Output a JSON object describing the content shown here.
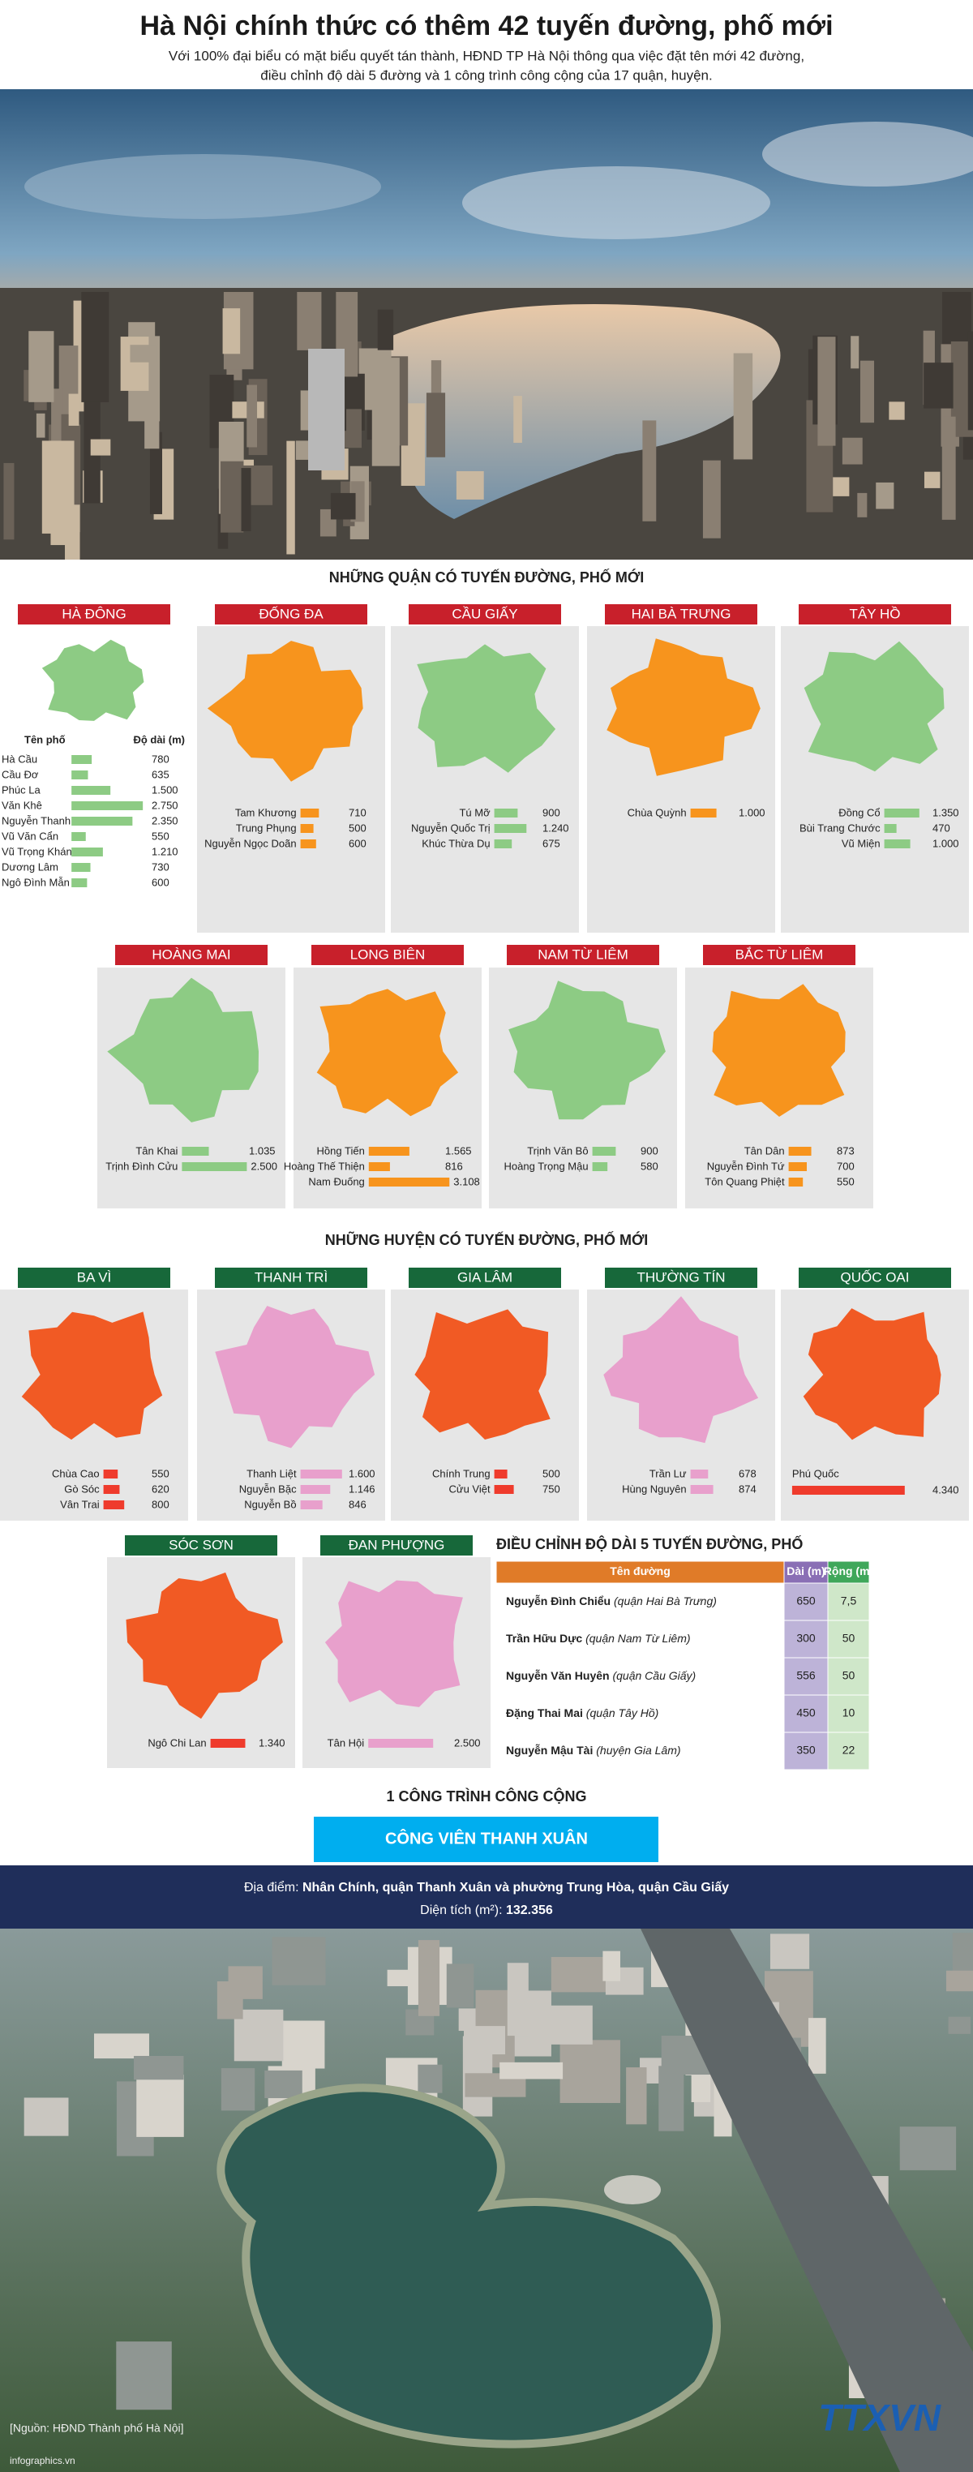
{
  "header": {
    "title": "Hà Nội chính thức có thêm 42 tuyến đường, phố mới",
    "subtitle": [
      "Với 100% đại biểu có mặt biểu quyết tán thành, HĐND TP Hà Nội thông qua việc đặt tên mới 42 đường,",
      "điều chỉnh độ dài 5 đường và 1 công trình công cộng của 17 quận, huyện."
    ]
  },
  "districts": {
    "heading": "NHỮNG QUẬN CÓ TUYẾN ĐƯỜNG, PHỐ MỚI",
    "columns": [
      "Tên phố",
      "Độ dài (m)"
    ],
    "tab_color": "#c8202b",
    "items": [
      {
        "name": "HÀ ĐÔNG",
        "map_color": "#8dcb84",
        "bar_color": "#8dcb84",
        "streets": [
          {
            "name": "Hà Cầu",
            "length": 780
          },
          {
            "name": "Cầu Đơ",
            "length": 635
          },
          {
            "name": "Phúc La",
            "length": {
              "value": 1500,
              "label": "1.500"
            }
          },
          {
            "name": "Văn Khê",
            "length": {
              "value": 2750,
              "label": "2.750"
            }
          },
          {
            "name": "Nguyễn Thanh Bình",
            "length": {
              "value": 2350,
              "label": "2.350"
            }
          },
          {
            "name": "Vũ Văn Cẩn",
            "length": 550
          },
          {
            "name": "Vũ Trọng Khánh",
            "length": {
              "value": 1210,
              "label": "1.210"
            }
          },
          {
            "name": "Dương Lâm",
            "length": 730
          },
          {
            "name": "Ngô Đình Mẫn",
            "length": 600
          }
        ]
      },
      {
        "name": "ĐỐNG ĐA",
        "map_color": "#f7941d",
        "bar_color": "#f7941d",
        "streets": [
          {
            "name": "Tam Khương",
            "length": 710
          },
          {
            "name": "Trung Phụng",
            "length": 500
          },
          {
            "name": "Nguyễn Ngọc Doãn",
            "length": 600
          }
        ]
      },
      {
        "name": "CẦU GIẤY",
        "map_color": "#8dcb84",
        "bar_color": "#8dcb84",
        "streets": [
          {
            "name": "Tú Mỡ",
            "length": 900
          },
          {
            "name": "Nguyễn Quốc Trị",
            "length": {
              "value": 1240,
              "label": "1.240"
            }
          },
          {
            "name": "Khúc Thừa Dụ",
            "length": 675
          }
        ]
      },
      {
        "name": "HAI BÀ TRƯNG",
        "map_color": "#f7941d",
        "bar_color": "#f7941d",
        "streets": [
          {
            "name": "Chùa Quỳnh",
            "length": {
              "value": 1000,
              "label": "1.000"
            }
          }
        ]
      },
      {
        "name": "TÂY HỒ",
        "map_color": "#8dcb84",
        "bar_color": "#8dcb84",
        "streets": [
          {
            "name": "Đồng Cổ",
            "length": {
              "value": 1350,
              "label": "1.350"
            }
          },
          {
            "name": "Bùi Trang Chước",
            "length": 470
          },
          {
            "name": "Vũ Miện",
            "length": {
              "value": 1000,
              "label": "1.000"
            }
          }
        ]
      },
      {
        "name": "HOÀNG MAI",
        "map_color": "#8dcb84",
        "bar_color": "#8dcb84",
        "streets": [
          {
            "name": "Tân Khai",
            "length": {
              "value": 1035,
              "label": "1.035"
            }
          },
          {
            "name": "Trịnh Đình Cửu",
            "length": {
              "value": 2500,
              "label": "2.500"
            }
          }
        ]
      },
      {
        "name": "LONG BIÊN",
        "map_color": "#f7941d",
        "bar_color": "#f7941d",
        "streets": [
          {
            "name": "Hồng Tiến",
            "length": {
              "value": 1565,
              "label": "1.565"
            }
          },
          {
            "name": "Hoàng Thế Thiện",
            "length": 816
          },
          {
            "name": "Nam Đuống",
            "length": {
              "value": 3108,
              "label": "3.108"
            }
          }
        ]
      },
      {
        "name": "NAM TỪ LIÊM",
        "map_color": "#8dcb84",
        "bar_color": "#8dcb84",
        "streets": [
          {
            "name": "Trịnh Văn Bô",
            "length": 900
          },
          {
            "name": "Hoàng Trọng Mậu",
            "length": 580
          }
        ]
      },
      {
        "name": "BẮC TỪ LIÊM",
        "map_color": "#f7941d",
        "bar_color": "#f7941d",
        "streets": [
          {
            "name": "Tân Dân",
            "length": 873
          },
          {
            "name": "Nguyễn Đình Tứ",
            "length": 700
          },
          {
            "name": "Tôn Quang Phiệt",
            "length": 550
          }
        ]
      }
    ]
  },
  "rural": {
    "heading": "NHỮNG HUYỆN CÓ TUYẾN ĐƯỜNG, PHỐ MỚI",
    "tab_color": "#17683a",
    "items": [
      {
        "name": "BA VÌ",
        "map_color": "#f15a24",
        "bar_color": "#ef3b2c",
        "streets": [
          {
            "name": "Chùa Cao",
            "length": 550
          },
          {
            "name": "Gò Sóc",
            "length": 620
          },
          {
            "name": "Vân Trai",
            "length": 800
          }
        ]
      },
      {
        "name": "THANH TRÌ",
        "map_color": "#e8a0cc",
        "bar_color": "#e8a0cc",
        "streets": [
          {
            "name": "Thanh Liệt",
            "length": {
              "value": 1600,
              "label": "1.600"
            }
          },
          {
            "name": "Nguyễn Bặc",
            "length": {
              "value": 1146,
              "label": "1.146"
            }
          },
          {
            "name": "Nguyễn Bồ",
            "length": 846
          }
        ]
      },
      {
        "name": "GIA LÂM",
        "map_color": "#f15a24",
        "bar_color": "#ef3b2c",
        "streets": [
          {
            "name": "Chính Trung",
            "length": 500
          },
          {
            "name": "Cửu Việt",
            "length": 750
          }
        ]
      },
      {
        "name": "THƯỜNG TÍN",
        "map_color": "#e8a0cc",
        "bar_color": "#e8a0cc",
        "streets": [
          {
            "name": "Trần Lư",
            "length": 678
          },
          {
            "name": "Hùng Nguyên",
            "length": 874
          }
        ]
      },
      {
        "name": "QUỐC OAI",
        "map_color": "#f15a24",
        "bar_color": "#ef3b2c",
        "streets": [
          {
            "name": "Phú Quốc",
            "length": {
              "value": 4340,
              "label": "4.340"
            }
          }
        ]
      },
      {
        "name": "SÓC SƠN",
        "map_color": "#f15a24",
        "bar_color": "#ef3b2c",
        "streets": [
          {
            "name": "Ngô Chi Lan",
            "length": {
              "value": 1340,
              "label": "1.340"
            }
          }
        ]
      },
      {
        "name": "ĐAN PHƯỢNG",
        "map_color": "#e8a0cc",
        "bar_color": "#e8a0cc",
        "streets": [
          {
            "name": "Tân Hội",
            "length": {
              "value": 2500,
              "label": "2.500"
            }
          }
        ]
      }
    ]
  },
  "adjust": {
    "heading": "ĐIỀU CHỈNH ĐỘ DÀI 5 TUYẾN ĐƯỜNG, PHỐ",
    "columns": [
      "Tên đường",
      "Dài (m)",
      "Rộng (m)"
    ],
    "rows": [
      {
        "name": "Nguyễn Đình Chiểu",
        "area": "(quận Hai Bà Trưng)",
        "length": 650,
        "width": {
          "value": 7.5,
          "label": "7,5"
        }
      },
      {
        "name": "Trần Hữu Dực",
        "area": "(quận Nam Từ Liêm)",
        "length": 300,
        "width": 50
      },
      {
        "name": "Nguyễn Văn Huyên",
        "area": "(quận Cầu Giấy)",
        "length": 556,
        "width": 50
      },
      {
        "name": "Đặng Thai Mai",
        "area": "(quận Tây Hồ)",
        "length": 450,
        "width": 10
      },
      {
        "name": "Nguyễn Mậu Tài",
        "area": "(huyện Gia Lâm)",
        "length": 350,
        "width": 22
      }
    ]
  },
  "public": {
    "heading": "1 CÔNG TRÌNH CÔNG CỘNG",
    "name": "CÔNG VIÊN THANH XUÂN",
    "location_label": "Địa điểm:",
    "location": "Nhân Chính, quận Thanh Xuân và phường Trung Hòa, quận Cầu Giấy",
    "area_label": "Diện tích (m²):",
    "area": {
      "value": 132356,
      "label": "132.356"
    }
  },
  "footer": {
    "source": "[Nguồn: HĐND Thành phố Hà Nội]",
    "site": "infographics.vn",
    "logo": "TTXVN"
  }
}
